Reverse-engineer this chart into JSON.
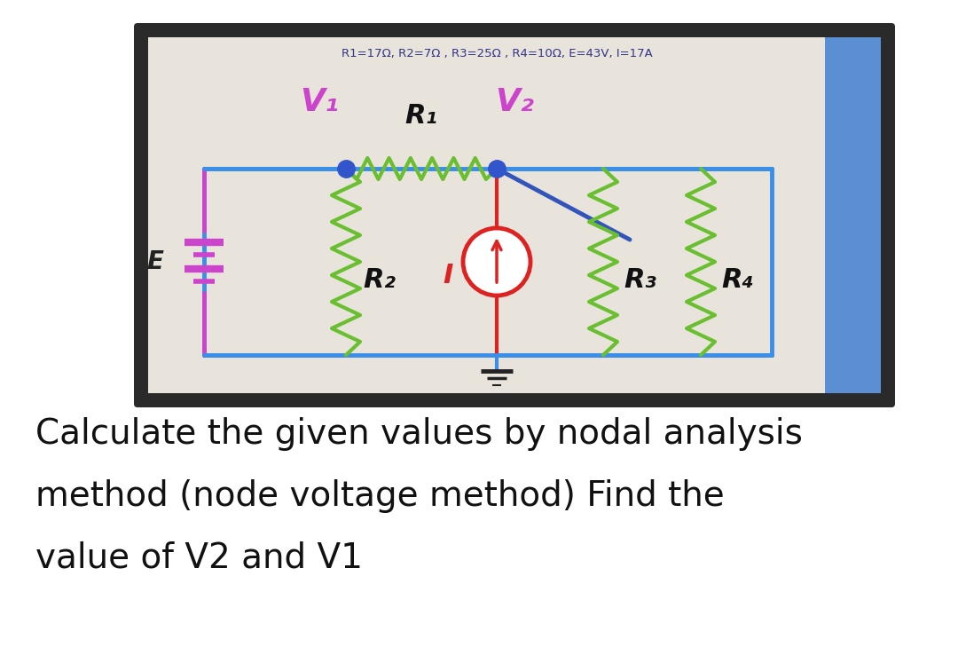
{
  "bg_color": "#ffffff",
  "screen_bg": "#e8e4dc",
  "monitor_outer": "#2a2a2a",
  "monitor_inner": "#1a1a1a",
  "blue_bar_color": "#5b8fd4",
  "title_text": "R1=17Ω, R2=7Ω , R3=25Ω , R4=10Ω, E=43V, I=17A",
  "title_color": "#333388",
  "title_fontsize": 9.5,
  "label_text_line1": "Calculate the given values by nodal analysis",
  "label_text_line2": "method (node voltage method) Find the",
  "label_text_line3": "value of V2 and V1",
  "label_fontsize": 28,
  "wire_color": "#3b8fe8",
  "resistor_color": "#6abf30",
  "battery_color": "#cc44cc",
  "current_color": "#dd2222",
  "node_color": "#3355cc",
  "V1_color": "#cc44cc",
  "V2_color": "#cc44cc",
  "label_R_color": "#111111",
  "diag_line_color": "#3355bb"
}
